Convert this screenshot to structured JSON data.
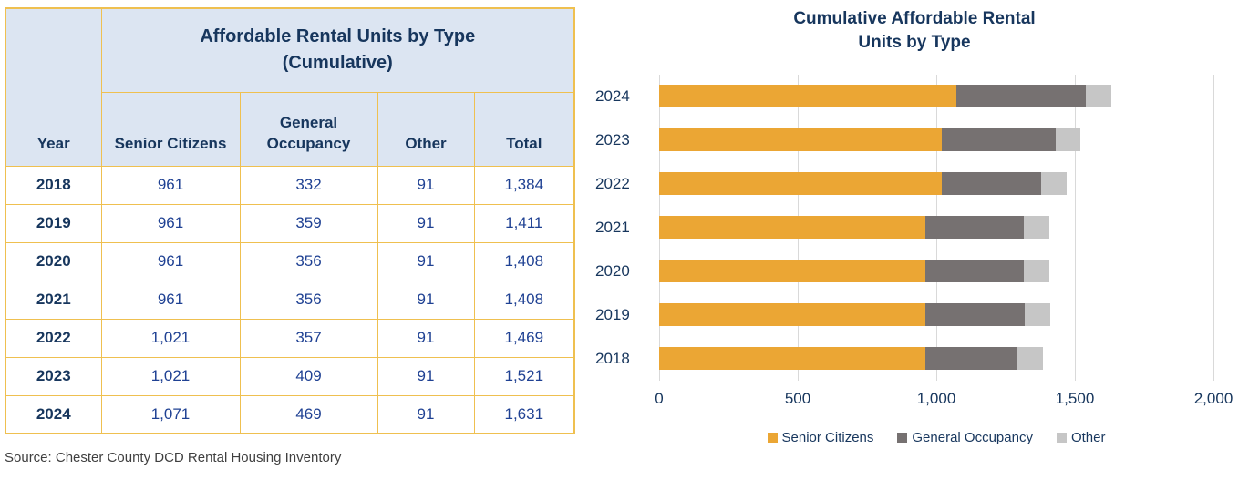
{
  "table": {
    "title_line1": "Affordable Rental Units by Type",
    "title_line2": "(Cumulative)",
    "headers": {
      "year": "Year",
      "senior": "Senior Citizens",
      "general": "General Occupancy",
      "other": "Other",
      "total": "Total"
    },
    "rows": [
      {
        "year": "2018",
        "senior": "961",
        "general": "332",
        "other": "91",
        "total": "1,384"
      },
      {
        "year": "2019",
        "senior": "961",
        "general": "359",
        "other": "91",
        "total": "1,411"
      },
      {
        "year": "2020",
        "senior": "961",
        "general": "356",
        "other": "91",
        "total": "1,408"
      },
      {
        "year": "2021",
        "senior": "961",
        "general": "356",
        "other": "91",
        "total": "1,408"
      },
      {
        "year": "2022",
        "senior": "1,021",
        "general": "357",
        "other": "91",
        "total": "1,469"
      },
      {
        "year": "2023",
        "senior": "1,021",
        "general": "409",
        "other": "91",
        "total": "1,521"
      },
      {
        "year": "2024",
        "senior": "1,071",
        "general": "469",
        "other": "91",
        "total": "1,631"
      }
    ]
  },
  "source": "Source: Chester County DCD Rental Housing Inventory",
  "chart": {
    "title_line1": "Cumulative Affordable Rental",
    "title_line2": "Units by Type"
  },
  "chart_data": {
    "type": "bar",
    "orientation": "horizontal",
    "stacked": true,
    "title": "Cumulative Affordable Rental Units by Type",
    "categories": [
      "2024",
      "2023",
      "2022",
      "2021",
      "2020",
      "2019",
      "2018"
    ],
    "series": [
      {
        "name": "Senior Citizens",
        "color": "#eba634",
        "values": [
          1071,
          1021,
          1021,
          961,
          961,
          961,
          961
        ]
      },
      {
        "name": "General Occupancy",
        "color": "#767171",
        "values": [
          469,
          409,
          357,
          356,
          356,
          359,
          332
        ]
      },
      {
        "name": "Other",
        "color": "#c6c6c6",
        "values": [
          91,
          91,
          91,
          91,
          91,
          91,
          91
        ]
      }
    ],
    "totals": [
      1631,
      1521,
      1469,
      1408,
      1408,
      1411,
      1384
    ],
    "xlim": [
      0,
      2000
    ],
    "x_ticks": [
      {
        "value": 0,
        "label": "0"
      },
      {
        "value": 500,
        "label": "500"
      },
      {
        "value": 1000,
        "label": "1,000"
      },
      {
        "value": 1500,
        "label": "1,500"
      },
      {
        "value": 2000,
        "label": "2,000"
      }
    ],
    "grid": true,
    "legend_position": "bottom"
  },
  "colors": {
    "table_border": "#efc050",
    "table_header_bg": "#dce5f2",
    "heading_text": "#17365d",
    "number_text": "#1f4193",
    "gridline": "#d9d9d9"
  }
}
